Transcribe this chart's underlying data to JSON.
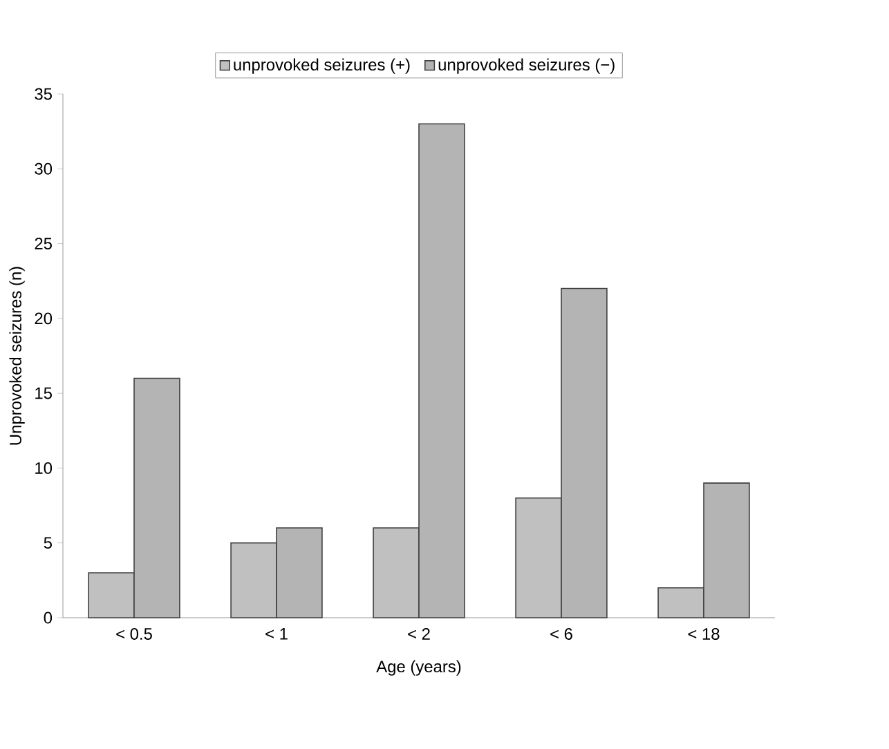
{
  "chart_data": {
    "type": "bar",
    "xlabel": "Age (years)",
    "ylabel": "Unprovoked seizures (n)",
    "categories": [
      "< 0.5",
      "< 1",
      "< 2",
      "< 6",
      "< 18"
    ],
    "series": [
      {
        "name": "unprovoked seizures (+)",
        "color": "#c0c0c0",
        "values": [
          3,
          5,
          6,
          8,
          2
        ]
      },
      {
        "name": "unprovoked seizures (−)",
        "color": "#b4b4b4",
        "values": [
          16,
          6,
          33,
          22,
          9
        ]
      }
    ],
    "ylim": [
      0,
      35
    ],
    "yticks": [
      0,
      5,
      10,
      15,
      20,
      25,
      30,
      35
    ],
    "legend": "top",
    "grid": false
  }
}
